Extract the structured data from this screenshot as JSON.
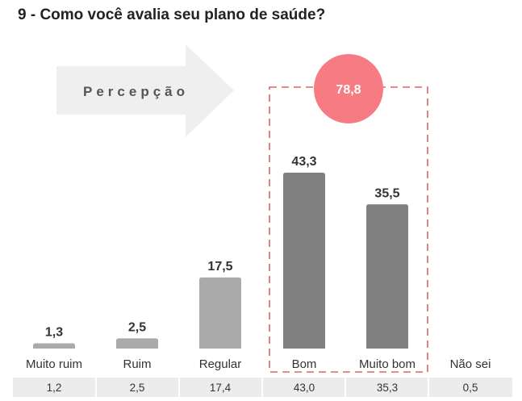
{
  "chart_data": {
    "type": "bar",
    "title": "9 - Como você avalia seu plano de saúde?",
    "categories": [
      "Muito ruim",
      "Ruim",
      "Regular",
      "Bom",
      "Muito bom",
      "Não sei"
    ],
    "values": [
      1.3,
      2.5,
      17.5,
      43.3,
      35.5,
      null
    ],
    "value_labels": [
      "1,3",
      "2,5",
      "17,5",
      "43,3",
      "35,5",
      ""
    ],
    "table_row": [
      "1,2",
      "2,5",
      "17,4",
      "43,0",
      "35,3",
      "0,5"
    ],
    "arrow_label": "Percepção",
    "highlight": {
      "categories": [
        "Bom",
        "Muito bom"
      ],
      "value": 78.8,
      "label": "78,8"
    },
    "colors": {
      "bar_light": "#aaaaaa",
      "bar_dark": "#808080",
      "highlight_circle": "#f77b82",
      "highlight_border": "#d9666b",
      "arrow": "#efefef",
      "table_bg": "#ececec"
    }
  }
}
